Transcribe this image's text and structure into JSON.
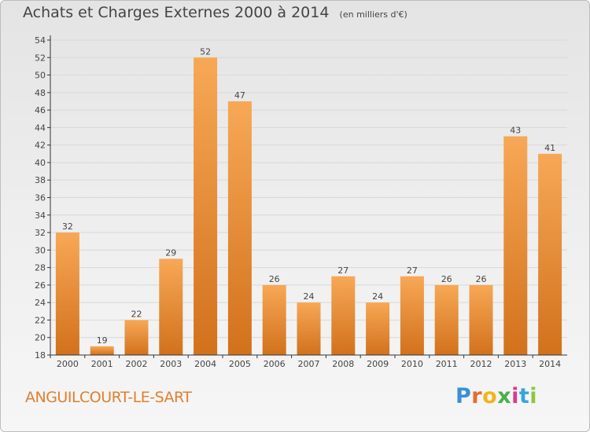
{
  "title": "Achats et Charges Externes 2000 à 2014",
  "unit_note": "(en milliers d'€)",
  "town": "ANGUILCOURT-LE-SART",
  "brand": {
    "letters": [
      "P",
      "r",
      "o",
      "x",
      "i",
      "t",
      "i"
    ],
    "colors": [
      "#3a8fd6",
      "#e86a2c",
      "#f2b41d",
      "#4bb04a",
      "#d73c8c",
      "#35a6de",
      "#8cc63f"
    ]
  },
  "colors": {
    "bar_light": "#f7a856",
    "bar_dark": "#d2711c",
    "axis": "#333333",
    "grid": "#d8d8d8",
    "label": "#444444"
  },
  "chart_data": {
    "type": "bar",
    "title": "Achats et Charges Externes 2000 à 2014",
    "subtitle": "(en milliers d'€)",
    "categories": [
      "2000",
      "2001",
      "2002",
      "2003",
      "2004",
      "2005",
      "2006",
      "2007",
      "2008",
      "2009",
      "2010",
      "2011",
      "2012",
      "2013",
      "2014"
    ],
    "values": [
      32,
      19,
      22,
      29,
      52,
      47,
      26,
      24,
      27,
      24,
      27,
      26,
      26,
      43,
      41
    ],
    "ylim": [
      18,
      54
    ],
    "yticks": [
      18,
      20,
      22,
      24,
      26,
      28,
      30,
      32,
      34,
      36,
      38,
      40,
      42,
      44,
      46,
      48,
      50,
      52,
      54
    ],
    "grid": true,
    "legend": "none"
  }
}
